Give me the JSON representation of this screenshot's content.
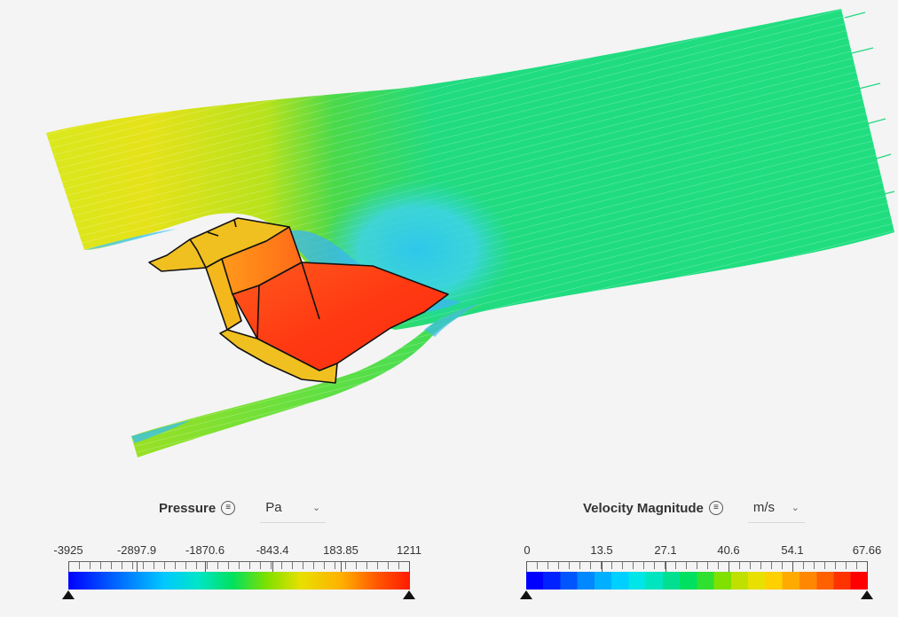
{
  "pressure_legend": {
    "title": "Pressure",
    "unit": "Pa",
    "ticks": [
      "-3925",
      "-2897.9",
      "-1870.6",
      "-843.4",
      "183.85",
      "1211"
    ],
    "min": -3925,
    "max": 1211,
    "colormap": "rainbow continuous (blue-cyan-green-yellow-orange-red)"
  },
  "velocity_legend": {
    "title": "Velocity Magnitude",
    "unit": "m/s",
    "ticks": [
      "0",
      "13.5",
      "27.1",
      "40.6",
      "54.1",
      "67.66"
    ],
    "min": 0,
    "max": 67.66,
    "colormap": "rainbow banded (20 steps)"
  },
  "icons": {
    "menu": "menu-lines-icon",
    "dropdown": "chevron-down-icon",
    "range_handle": "triangle-up-icon"
  },
  "colors": {
    "background": "#f4f4f4",
    "surface_part": "#f0c020",
    "rainbow": [
      "#0000ff",
      "#00aaff",
      "#00e5e5",
      "#00e070",
      "#6be000",
      "#e8e000",
      "#ff9900",
      "#ff2200"
    ]
  }
}
